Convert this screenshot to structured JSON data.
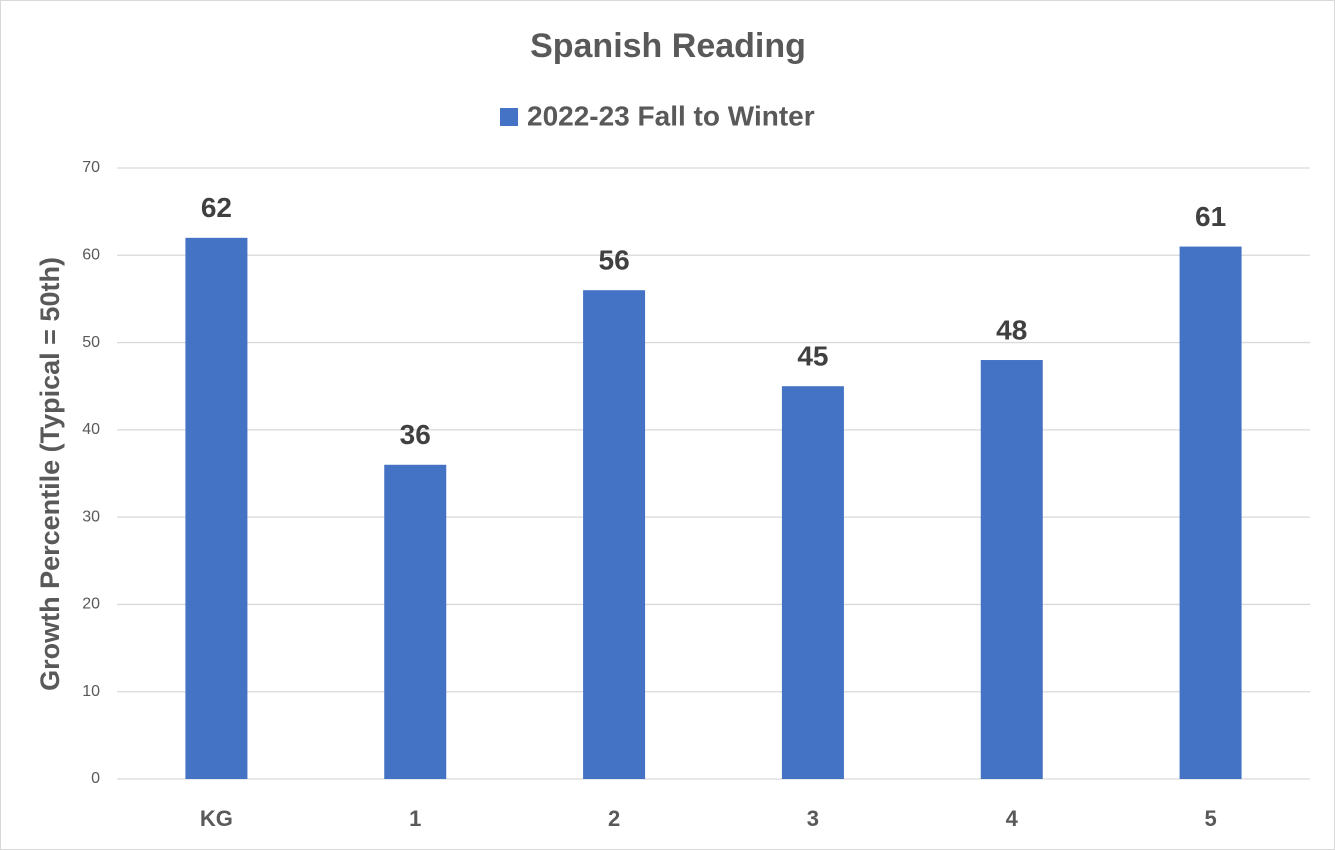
{
  "chart_data": {
    "type": "bar",
    "title": "Spanish Reading",
    "y_axis_label": "Growth Percentile (Typical = 50th)",
    "categories": [
      "KG",
      "1",
      "2",
      "3",
      "4",
      "5"
    ],
    "series": [
      {
        "name": "2022-23 Fall to Winter",
        "color": "#4472c4",
        "values": [
          62,
          36,
          56,
          45,
          48,
          61
        ]
      }
    ],
    "ylim": [
      0,
      70
    ],
    "yticks": [
      0,
      10,
      20,
      30,
      40,
      50,
      60,
      70
    ],
    "grid": true,
    "legend": "top"
  }
}
